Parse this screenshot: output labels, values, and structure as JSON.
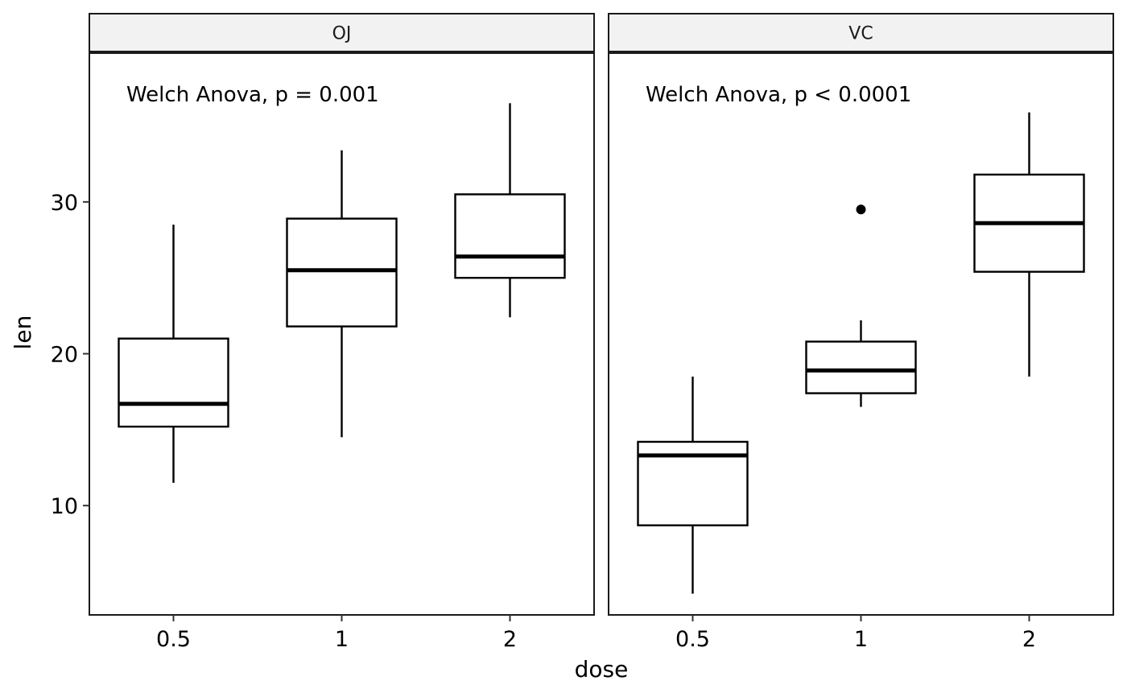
{
  "chart_data": {
    "type": "box",
    "xlabel": "dose",
    "ylabel": "len",
    "categories": [
      "0.5",
      "1",
      "2"
    ],
    "y_ticks": [
      10,
      20,
      30
    ],
    "ylim": [
      2.8,
      39.8
    ],
    "grid": false,
    "legend": "none",
    "panels": [
      {
        "strip_label": "OJ",
        "annotation": "Welch Anova, p = 0.001",
        "boxes": [
          {
            "category": "0.5",
            "min": 11.5,
            "q1": 15.2,
            "median": 16.7,
            "q3": 21.0,
            "max": 28.5,
            "outliers": []
          },
          {
            "category": "1",
            "min": 14.5,
            "q1": 21.8,
            "median": 25.5,
            "q3": 28.9,
            "max": 33.4,
            "outliers": []
          },
          {
            "category": "2",
            "min": 22.4,
            "q1": 25.0,
            "median": 26.4,
            "q3": 30.5,
            "max": 36.5,
            "outliers": []
          }
        ]
      },
      {
        "strip_label": "VC",
        "annotation": "Welch Anova, p < 0.0001",
        "boxes": [
          {
            "category": "0.5",
            "min": 4.2,
            "q1": 8.7,
            "median": 13.3,
            "q3": 14.2,
            "max": 18.5,
            "outliers": []
          },
          {
            "category": "1",
            "min": 16.5,
            "q1": 17.4,
            "median": 18.9,
            "q3": 20.8,
            "max": 22.2,
            "outliers": [
              29.5
            ]
          },
          {
            "category": "2",
            "min": 18.5,
            "q1": 25.4,
            "median": 28.6,
            "q3": 31.8,
            "max": 35.9,
            "outliers": []
          }
        ]
      }
    ],
    "colors": {
      "box_fill": "#ffffff",
      "line": "#000000",
      "strip_fill": "#f2f2f2",
      "background": "#ffffff"
    }
  }
}
